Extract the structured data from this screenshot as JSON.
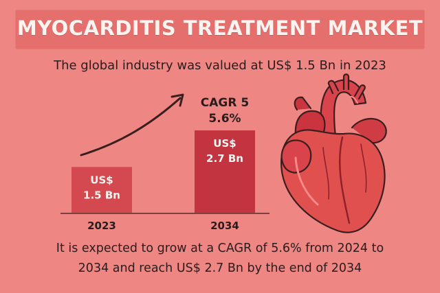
{
  "header": {
    "title": "MYOCARDITIS TREATMENT MARKET",
    "subtitle": "The global industry was valued at US$ 1.5 Bn in 2023"
  },
  "callout": {
    "cagr_line1": "CAGR 5",
    "cagr_line2": "5.6%"
  },
  "footer": {
    "line1": "It is expected to grow at a CAGR of 5.6% from 2024 to",
    "line2": "2034 and reach US$ 2.7 Bn by the end of 2034"
  },
  "colors": {
    "background": "#ee8683",
    "title_band": "#e56f6d",
    "bar_2023": "#d4494f",
    "bar_2034": "#c2343f",
    "heart_main": "#e0504f",
    "heart_dark": "#a82b33",
    "outline": "#3a1e1e"
  },
  "icons": [
    "heart-illustration",
    "growth-arrow-icon"
  ],
  "chart_data": {
    "type": "bar",
    "categories": [
      "2023",
      "2034"
    ],
    "values": [
      1.5,
      2.7
    ],
    "value_labels": [
      [
        "US$",
        "1.5 Bn"
      ],
      [
        "US$",
        "2.7 Bn"
      ]
    ],
    "unit": "US$ Bn",
    "title": "",
    "xlabel": "",
    "ylabel": "",
    "ylim": [
      0,
      2.7
    ],
    "grid": false,
    "legend": "none"
  }
}
